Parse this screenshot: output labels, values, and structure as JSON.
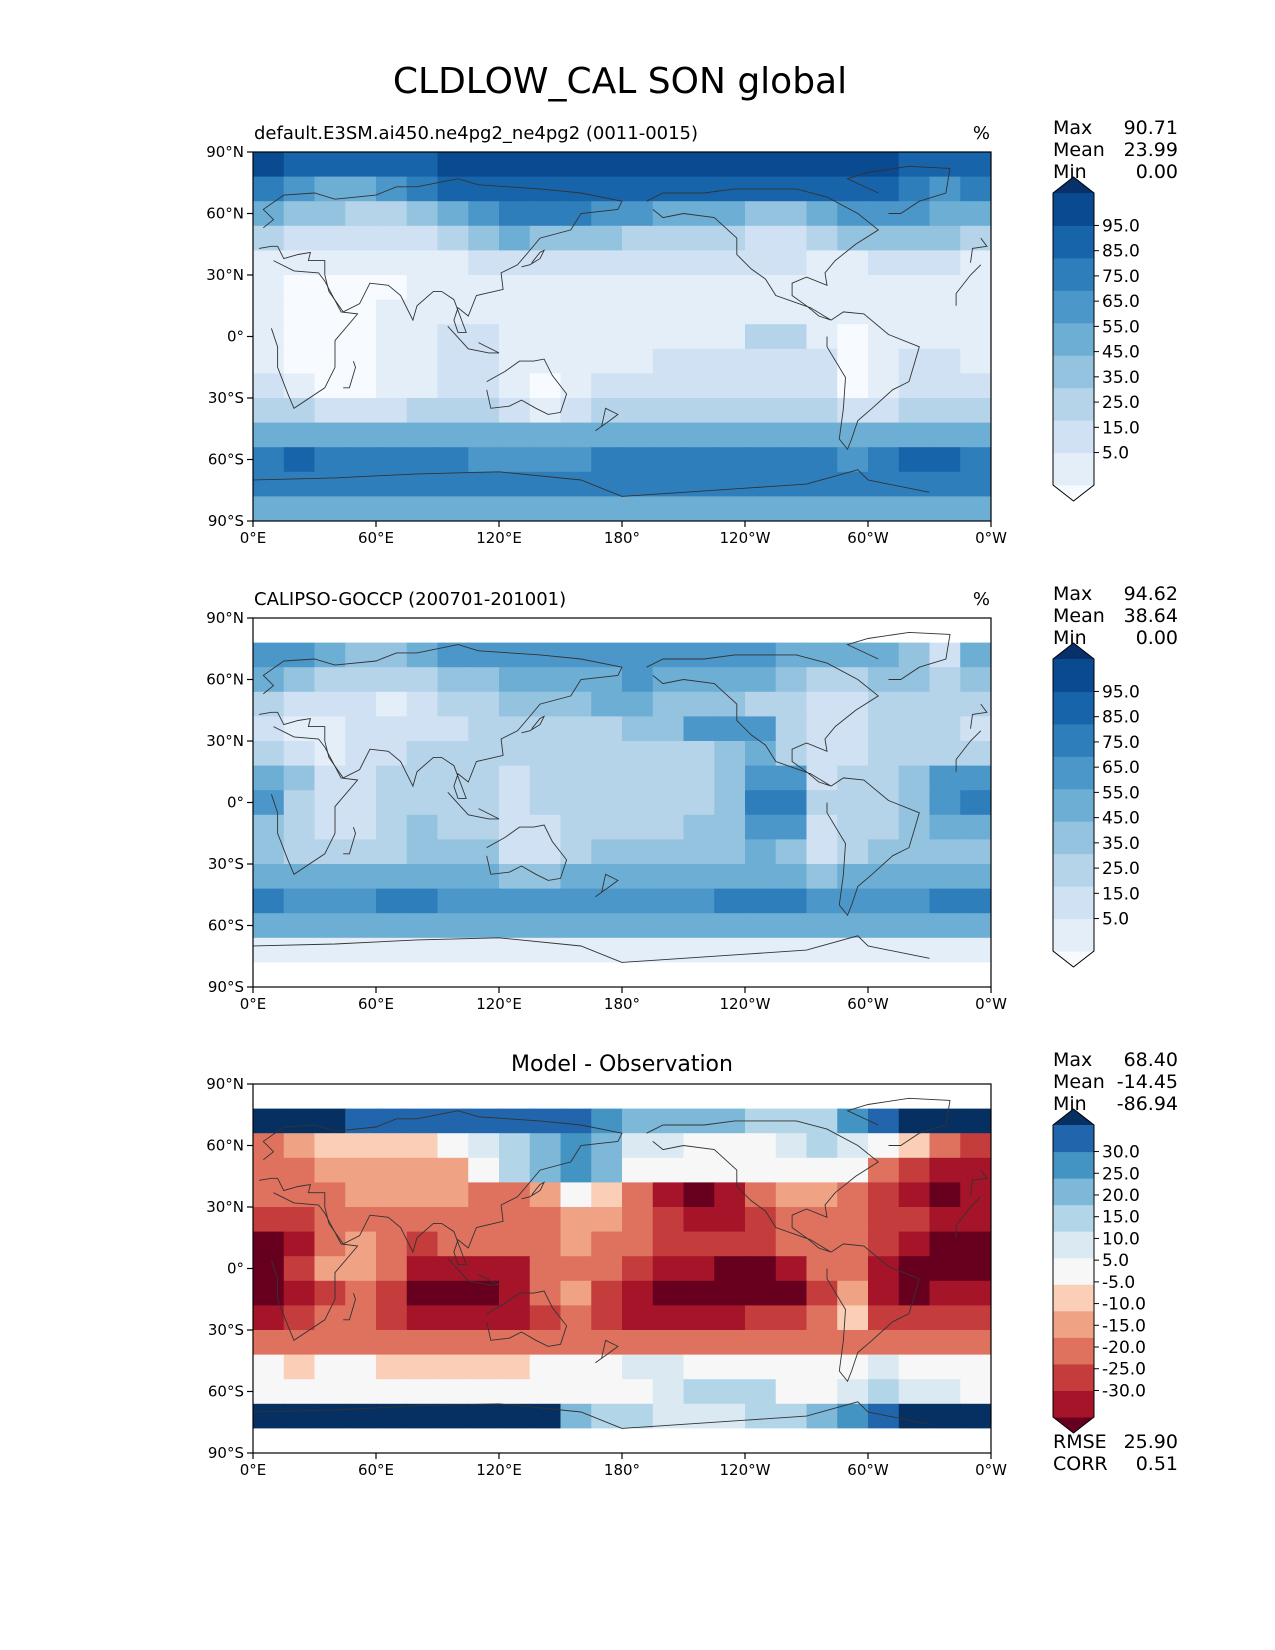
{
  "figure_title": "CLDLOW_CAL SON global",
  "colors": {
    "seq_low_to_high": [
      "#f7fbff",
      "#e3eef9",
      "#cfe1f2",
      "#b5d4e9",
      "#93c3df",
      "#6daed5",
      "#4b97c9",
      "#2f7ebc",
      "#1864aa",
      "#0a4a90",
      "#08306b"
    ],
    "diff_low_to_high": [
      "#67001f",
      "#a51429",
      "#c43c3c",
      "#de725f",
      "#f0a285",
      "#fbcfb7",
      "#f7f7f7",
      "#dbeaf2",
      "#b2d5e7",
      "#7db8d8",
      "#4393c3",
      "#2166ac",
      "#053061"
    ],
    "land_outline": "#333333"
  },
  "chart_data": [
    {
      "type": "heatmap",
      "panel_title": "default.E3SM.ai450.ne4pg2_ne4pg2 (0011-0015)",
      "units": "%",
      "stats": {
        "max_label": "Max",
        "max": "90.71",
        "mean_label": "Mean",
        "mean": "23.99",
        "min_label": "Min",
        "min": "0.00"
      },
      "xlabels": [
        "0°E",
        "60°E",
        "120°E",
        "180°",
        "120°W",
        "60°W",
        "0°W"
      ],
      "ylabels": [
        "90°N",
        "60°N",
        "30°N",
        "0°",
        "30°S",
        "60°S",
        "90°S"
      ],
      "colorbar_ticks": [
        "95.0",
        "85.0",
        "75.0",
        "65.0",
        "55.0",
        "45.0",
        "35.0",
        "25.0",
        "15.0",
        "5.0"
      ],
      "field": [
        [
          9,
          8,
          8,
          8,
          8,
          8,
          9,
          9,
          9,
          9,
          9,
          9,
          9,
          9,
          9,
          9,
          9,
          9,
          9,
          9,
          9,
          8,
          8,
          8
        ],
        [
          7,
          6,
          5,
          5,
          6,
          7,
          8,
          8,
          8,
          8,
          8,
          8,
          8,
          8,
          8,
          8,
          8,
          8,
          8,
          8,
          8,
          7,
          6,
          7
        ],
        [
          5,
          4,
          4,
          3,
          3,
          4,
          5,
          6,
          7,
          7,
          7,
          6,
          6,
          5,
          5,
          5,
          4,
          4,
          5,
          6,
          6,
          6,
          5,
          5
        ],
        [
          3,
          2,
          2,
          2,
          2,
          2,
          3,
          4,
          5,
          4,
          4,
          4,
          3,
          3,
          3,
          3,
          2,
          2,
          3,
          4,
          4,
          4,
          4,
          3
        ],
        [
          1,
          1,
          1,
          1,
          1,
          1,
          1,
          2,
          2,
          2,
          2,
          2,
          2,
          2,
          2,
          2,
          2,
          2,
          1,
          1,
          2,
          2,
          2,
          1
        ],
        [
          1,
          0,
          0,
          0,
          0,
          1,
          1,
          1,
          1,
          1,
          1,
          1,
          1,
          1,
          1,
          1,
          1,
          1,
          1,
          1,
          1,
          1,
          1,
          1
        ],
        [
          1,
          0,
          0,
          0,
          1,
          1,
          1,
          1,
          1,
          1,
          1,
          1,
          1,
          1,
          1,
          1,
          1,
          1,
          1,
          1,
          1,
          1,
          1,
          1
        ],
        [
          1,
          0,
          0,
          0,
          1,
          1,
          2,
          2,
          1,
          1,
          1,
          1,
          1,
          1,
          1,
          1,
          3,
          3,
          1,
          0,
          1,
          1,
          1,
          1
        ],
        [
          1,
          0,
          0,
          0,
          1,
          1,
          2,
          2,
          1,
          1,
          1,
          1,
          1,
          2,
          2,
          2,
          2,
          2,
          2,
          0,
          1,
          2,
          2,
          1
        ],
        [
          2,
          1,
          0,
          0,
          1,
          1,
          2,
          2,
          1,
          0,
          1,
          2,
          2,
          2,
          2,
          2,
          2,
          2,
          2,
          0,
          1,
          2,
          2,
          2
        ],
        [
          3,
          3,
          2,
          2,
          2,
          3,
          3,
          3,
          2,
          1,
          2,
          3,
          3,
          3,
          3,
          3,
          3,
          3,
          3,
          2,
          2,
          3,
          3,
          3
        ],
        [
          5,
          5,
          5,
          5,
          5,
          5,
          5,
          5,
          5,
          5,
          5,
          5,
          5,
          5,
          5,
          5,
          5,
          5,
          5,
          5,
          5,
          5,
          5,
          5
        ],
        [
          7,
          8,
          7,
          7,
          7,
          7,
          7,
          6,
          6,
          6,
          6,
          7,
          7,
          7,
          7,
          7,
          7,
          7,
          7,
          6,
          7,
          8,
          8,
          7
        ],
        [
          7,
          7,
          7,
          7,
          7,
          7,
          7,
          7,
          7,
          7,
          7,
          7,
          7,
          7,
          7,
          7,
          7,
          7,
          7,
          7,
          7,
          7,
          7,
          7
        ],
        [
          5,
          5,
          5,
          5,
          5,
          5,
          5,
          5,
          5,
          5,
          5,
          5,
          5,
          5,
          5,
          5,
          5,
          5,
          5,
          5,
          5,
          5,
          5,
          5
        ]
      ]
    },
    {
      "type": "heatmap",
      "panel_title": "CALIPSO-GOCCP (200701-201001)",
      "units": "%",
      "stats": {
        "max_label": "Max",
        "max": "94.62",
        "mean_label": "Mean",
        "mean": "38.64",
        "min_label": "Min",
        "min": "0.00"
      },
      "xlabels": [
        "0°E",
        "60°E",
        "120°E",
        "180°",
        "120°W",
        "60°W",
        "0°W"
      ],
      "ylabels": [
        "90°N",
        "60°N",
        "30°N",
        "0°",
        "30°S",
        "60°S",
        "90°S"
      ],
      "colorbar_ticks": [
        "95.0",
        "85.0",
        "75.0",
        "65.0",
        "55.0",
        "45.0",
        "35.0",
        "25.0",
        "15.0",
        "5.0"
      ],
      "field": [
        [
          -1,
          -1,
          -1,
          -1,
          -1,
          -1,
          -1,
          -1,
          -1,
          -1,
          -1,
          -1,
          -1,
          -1,
          -1,
          -1,
          -1,
          -1,
          -1,
          -1,
          -1,
          -1,
          -1,
          -1
        ],
        [
          6,
          6,
          5,
          4,
          4,
          5,
          6,
          6,
          6,
          6,
          6,
          6,
          6,
          6,
          6,
          6,
          6,
          5,
          5,
          5,
          5,
          4,
          2,
          5
        ],
        [
          5,
          4,
          3,
          3,
          3,
          3,
          4,
          4,
          5,
          5,
          5,
          5,
          6,
          5,
          5,
          5,
          5,
          4,
          3,
          3,
          4,
          4,
          3,
          4
        ],
        [
          3,
          2,
          2,
          2,
          1,
          2,
          3,
          3,
          4,
          4,
          4,
          5,
          5,
          4,
          4,
          4,
          3,
          3,
          2,
          2,
          3,
          3,
          3,
          3
        ],
        [
          2,
          1,
          1,
          2,
          2,
          2,
          2,
          3,
          3,
          3,
          3,
          3,
          4,
          4,
          6,
          6,
          6,
          3,
          2,
          2,
          3,
          3,
          3,
          2
        ],
        [
          3,
          2,
          1,
          2,
          2,
          3,
          3,
          3,
          3,
          3,
          3,
          3,
          3,
          3,
          3,
          4,
          5,
          3,
          2,
          2,
          3,
          3,
          3,
          3
        ],
        [
          5,
          4,
          2,
          2,
          3,
          3,
          3,
          3,
          2,
          3,
          3,
          3,
          3,
          3,
          3,
          4,
          6,
          6,
          2,
          3,
          3,
          4,
          6,
          6
        ],
        [
          6,
          3,
          2,
          2,
          3,
          3,
          3,
          3,
          2,
          3,
          3,
          3,
          3,
          3,
          3,
          4,
          7,
          7,
          3,
          3,
          3,
          4,
          6,
          7
        ],
        [
          4,
          3,
          2,
          2,
          3,
          4,
          3,
          3,
          2,
          2,
          3,
          3,
          3,
          3,
          4,
          4,
          6,
          6,
          2,
          3,
          3,
          4,
          5,
          5
        ],
        [
          4,
          3,
          3,
          3,
          3,
          4,
          4,
          4,
          2,
          2,
          3,
          4,
          4,
          4,
          4,
          4,
          5,
          4,
          2,
          3,
          4,
          4,
          4,
          4
        ],
        [
          5,
          5,
          5,
          5,
          5,
          5,
          5,
          5,
          4,
          4,
          5,
          5,
          5,
          5,
          5,
          5,
          5,
          5,
          4,
          5,
          5,
          5,
          5,
          5
        ],
        [
          7,
          6,
          6,
          6,
          7,
          7,
          6,
          6,
          6,
          6,
          6,
          6,
          6,
          6,
          6,
          7,
          7,
          7,
          6,
          6,
          6,
          6,
          7,
          7
        ],
        [
          5,
          5,
          5,
          5,
          5,
          5,
          5,
          5,
          5,
          5,
          5,
          5,
          5,
          5,
          5,
          5,
          5,
          5,
          5,
          5,
          5,
          5,
          5,
          5
        ],
        [
          1,
          1,
          1,
          1,
          1,
          1,
          1,
          1,
          1,
          1,
          1,
          1,
          1,
          1,
          1,
          1,
          1,
          1,
          1,
          1,
          1,
          1,
          1,
          1
        ],
        [
          -1,
          -1,
          -1,
          -1,
          -1,
          -1,
          -1,
          -1,
          -1,
          -1,
          -1,
          -1,
          -1,
          -1,
          -1,
          -1,
          -1,
          -1,
          -1,
          -1,
          -1,
          -1,
          -1,
          -1
        ]
      ]
    },
    {
      "type": "heatmap",
      "panel_title": "Model - Observation",
      "units": "",
      "stats": {
        "max_label": "Max",
        "max": "68.40",
        "mean_label": "Mean",
        "mean": "-14.45",
        "min_label": "Min",
        "min": "-86.94"
      },
      "xlabels": [
        "0°E",
        "60°E",
        "120°E",
        "180°",
        "120°W",
        "60°W",
        "0°W"
      ],
      "ylabels": [
        "90°N",
        "60°N",
        "30°N",
        "0°",
        "30°S",
        "60°S",
        "90°S"
      ],
      "colorbar_ticks": [
        "30.0",
        "25.0",
        "20.0",
        "15.0",
        "10.0",
        "5.0",
        "-5.0",
        "-10.0",
        "-15.0",
        "-20.0",
        "-25.0",
        "-30.0"
      ],
      "extra_stats": {
        "rmse_label": "RMSE",
        "rmse": "25.90",
        "corr_label": "CORR",
        "corr": "0.51"
      },
      "field": [
        [
          -99,
          -99,
          -99,
          -99,
          -99,
          -99,
          -99,
          -99,
          -99,
          -99,
          -99,
          -99,
          -99,
          -99,
          -99,
          -99,
          -99,
          -99,
          -99,
          -99,
          -99,
          -99,
          -99,
          -99
        ],
        [
          12,
          12,
          12,
          11,
          11,
          11,
          11,
          11,
          11,
          11,
          11,
          10,
          9,
          9,
          9,
          9,
          8,
          8,
          8,
          10,
          11,
          12,
          12,
          12
        ],
        [
          3,
          4,
          5,
          5,
          5,
          5,
          6,
          7,
          8,
          9,
          10,
          9,
          7,
          7,
          6,
          6,
          6,
          7,
          8,
          7,
          6,
          5,
          3,
          2
        ],
        [
          3,
          3,
          4,
          4,
          4,
          4,
          4,
          6,
          8,
          9,
          10,
          9,
          6,
          6,
          6,
          6,
          6,
          6,
          6,
          6,
          3,
          2,
          1,
          1
        ],
        [
          3,
          3,
          3,
          4,
          4,
          4,
          4,
          3,
          3,
          4,
          6,
          5,
          3,
          1,
          0,
          1,
          3,
          4,
          4,
          3,
          2,
          1,
          0,
          1
        ],
        [
          2,
          2,
          3,
          3,
          3,
          3,
          3,
          3,
          3,
          3,
          4,
          4,
          3,
          2,
          1,
          1,
          2,
          3,
          3,
          3,
          2,
          2,
          1,
          1
        ],
        [
          0,
          1,
          3,
          4,
          3,
          2,
          3,
          3,
          3,
          3,
          4,
          3,
          3,
          2,
          2,
          2,
          2,
          3,
          3,
          3,
          2,
          1,
          0,
          0
        ],
        [
          0,
          2,
          4,
          4,
          3,
          1,
          1,
          1,
          1,
          3,
          3,
          3,
          2,
          1,
          1,
          0,
          0,
          1,
          3,
          3,
          1,
          0,
          0,
          0
        ],
        [
          0,
          1,
          2,
          3,
          2,
          0,
          0,
          0,
          1,
          3,
          4,
          2,
          1,
          0,
          0,
          0,
          0,
          0,
          2,
          4,
          1,
          0,
          1,
          1
        ],
        [
          1,
          2,
          3,
          3,
          2,
          1,
          1,
          1,
          1,
          2,
          3,
          2,
          1,
          1,
          1,
          1,
          2,
          2,
          3,
          5,
          2,
          2,
          2,
          2
        ],
        [
          3,
          3,
          3,
          3,
          3,
          3,
          3,
          3,
          3,
          3,
          3,
          3,
          3,
          3,
          3,
          3,
          3,
          3,
          3,
          3,
          3,
          3,
          3,
          3
        ],
        [
          6,
          5,
          6,
          6,
          5,
          5,
          5,
          5,
          5,
          6,
          6,
          6,
          7,
          7,
          6,
          6,
          6,
          6,
          6,
          6,
          7,
          6,
          6,
          6
        ],
        [
          6,
          6,
          6,
          6,
          6,
          6,
          6,
          6,
          6,
          6,
          6,
          6,
          6,
          7,
          8,
          8,
          8,
          6,
          6,
          7,
          8,
          7,
          7,
          6
        ],
        [
          12,
          12,
          12,
          12,
          12,
          12,
          12,
          12,
          12,
          12,
          9,
          8,
          8,
          7,
          7,
          7,
          8,
          8,
          9,
          10,
          11,
          12,
          12,
          12
        ],
        [
          -99,
          -99,
          -99,
          -99,
          -99,
          -99,
          -99,
          -99,
          -99,
          -99,
          -99,
          -99,
          -99,
          -99,
          -99,
          -99,
          -99,
          -99,
          -99,
          -99,
          -99,
          -99,
          -99,
          -99
        ]
      ]
    }
  ]
}
